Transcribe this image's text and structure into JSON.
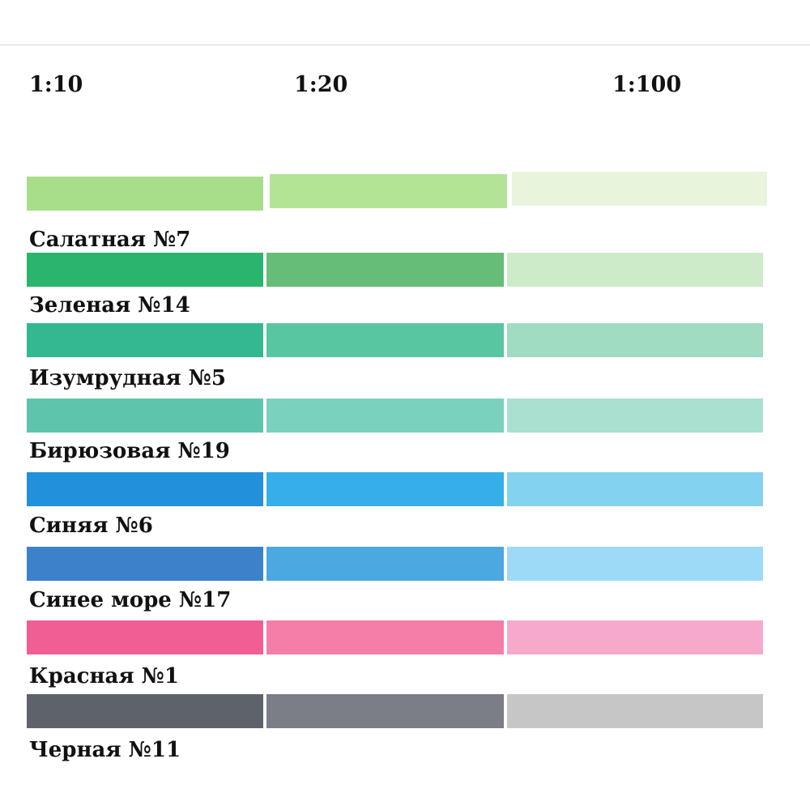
{
  "ratios": [
    "1:10",
    "1:20",
    "1:100"
  ],
  "colors": [
    {
      "name": "Салатная №7",
      "swatches": [
        "#a8de8a",
        "#b3e394",
        "#e8f5dc"
      ]
    },
    {
      "name": "Зеленая №14",
      "swatches": [
        "#2bb46d",
        "#65bd77",
        "#cdebc8"
      ]
    },
    {
      "name": "Изумрудная №5",
      "swatches": [
        "#34b891",
        "#58c6a0",
        "#9fdcc2"
      ]
    },
    {
      "name": "Бирюзовая №19",
      "swatches": [
        "#5fc4ac",
        "#7ad2bd",
        "#a9e0cf"
      ]
    },
    {
      "name": "Синяя №6",
      "swatches": [
        "#2290da",
        "#36aeea",
        "#83d2ef"
      ]
    },
    {
      "name": "Синее море №17",
      "swatches": [
        "#3b82cb",
        "#4ca8e0",
        "#9ddaf7"
      ]
    },
    {
      "name": "Красная №1",
      "swatches": [
        "#f15e93",
        "#f57ea8",
        "#f7a9cc"
      ]
    },
    {
      "name": "Черная №11",
      "swatches": [
        "#5e6369",
        "#7b7e86",
        "#c6c6c6"
      ]
    }
  ]
}
